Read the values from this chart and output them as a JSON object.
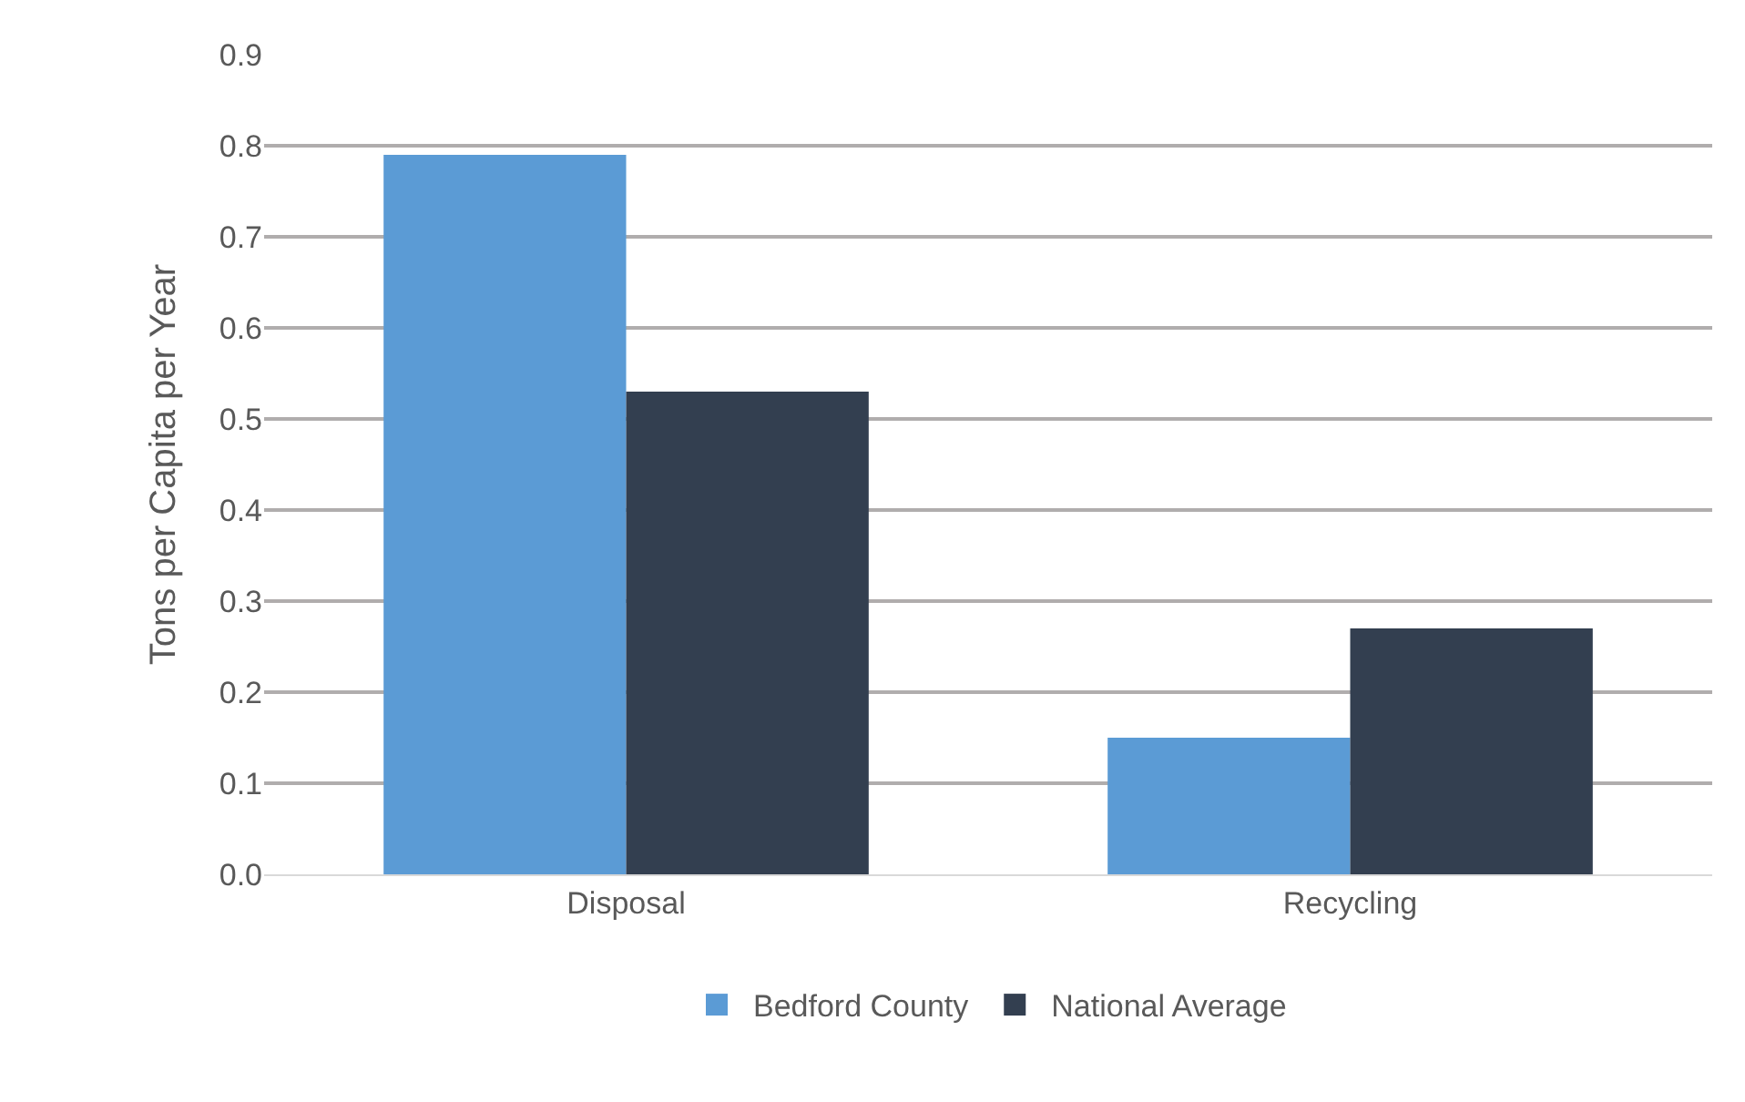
{
  "chart_data": {
    "type": "bar",
    "ylabel": "Tons per Capita per Year",
    "categories": [
      "Disposal",
      "Recycling"
    ],
    "series": [
      {
        "name": "Bedford County",
        "color": "#5b9bd5",
        "values": [
          0.79,
          0.15
        ]
      },
      {
        "name": "National Average",
        "color": "#333f50",
        "values": [
          0.53,
          0.27
        ]
      }
    ],
    "ylim": [
      0,
      0.9
    ],
    "yticks": [
      "0.0",
      0.1,
      0.2,
      0.3,
      0.4,
      0.5,
      0.6,
      0.7,
      0.8,
      0.9
    ],
    "grid": "y",
    "legend": "bottom"
  }
}
